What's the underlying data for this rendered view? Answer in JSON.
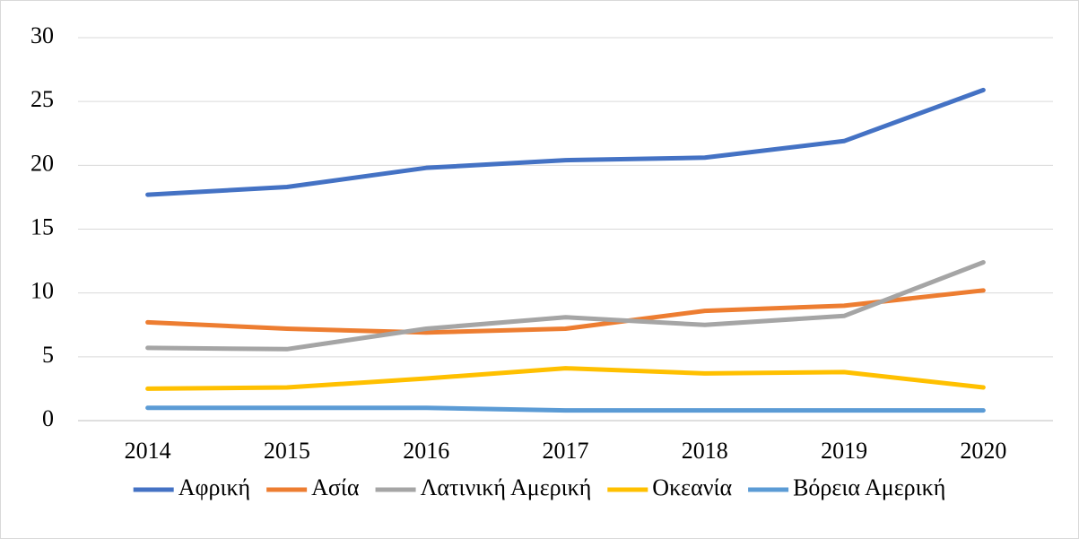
{
  "chart_data": {
    "type": "line",
    "categories": [
      "2014",
      "2015",
      "2016",
      "2017",
      "2018",
      "2019",
      "2020"
    ],
    "series": [
      {
        "name": "Αφρική",
        "color": "#4472c4",
        "values": [
          17.7,
          18.3,
          19.8,
          20.4,
          20.6,
          21.9,
          25.9
        ]
      },
      {
        "name": "Ασία",
        "color": "#ed7d31",
        "values": [
          7.7,
          7.2,
          6.9,
          7.2,
          8.6,
          9.0,
          10.2
        ]
      },
      {
        "name": "Λατινική Αμερική",
        "color": "#a5a5a5",
        "values": [
          5.7,
          5.6,
          7.2,
          8.1,
          7.5,
          8.2,
          12.4
        ]
      },
      {
        "name": "Οκεανία",
        "color": "#ffc000",
        "values": [
          2.5,
          2.6,
          3.3,
          4.1,
          3.7,
          3.8,
          2.6
        ]
      },
      {
        "name": "Βόρεια Αμερική",
        "color": "#5b9bd5",
        "values": [
          1.0,
          1.0,
          1.0,
          0.8,
          0.8,
          0.8,
          0.8
        ]
      }
    ],
    "ylim": [
      0,
      30
    ],
    "yticks": [
      0,
      5,
      10,
      15,
      20,
      25,
      30
    ],
    "grid": true,
    "legend": "bottom"
  }
}
